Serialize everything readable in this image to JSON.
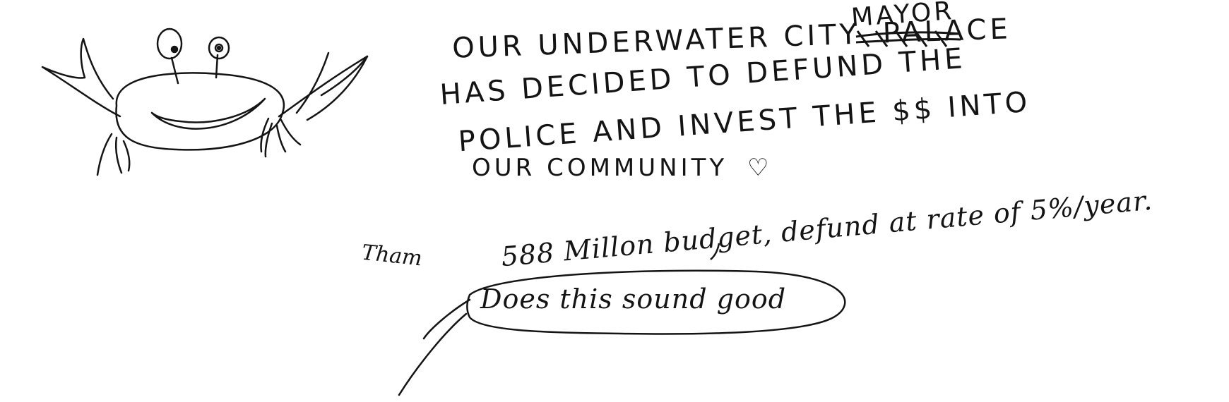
{
  "note": {
    "correction": "MAYOR",
    "line1": "OUR UNDERWATER CITY",
    "crossed_out": "PALACE",
    "line2": "HAS DECIDED TO DEFUND THE",
    "line3": "POLICE AND INVEST THE $$ INTO",
    "line4": "OUR COMMUNITY",
    "scribble": "Tham",
    "line5": "588 Millon budget, defund at rate of 5%/year.",
    "speech_bubble": "Does this sound good"
  },
  "icons": {
    "crab": "crab-drawing",
    "heart": "heart-doodle"
  },
  "colors": {
    "ink": "#141414",
    "paper": "#ffffff"
  }
}
